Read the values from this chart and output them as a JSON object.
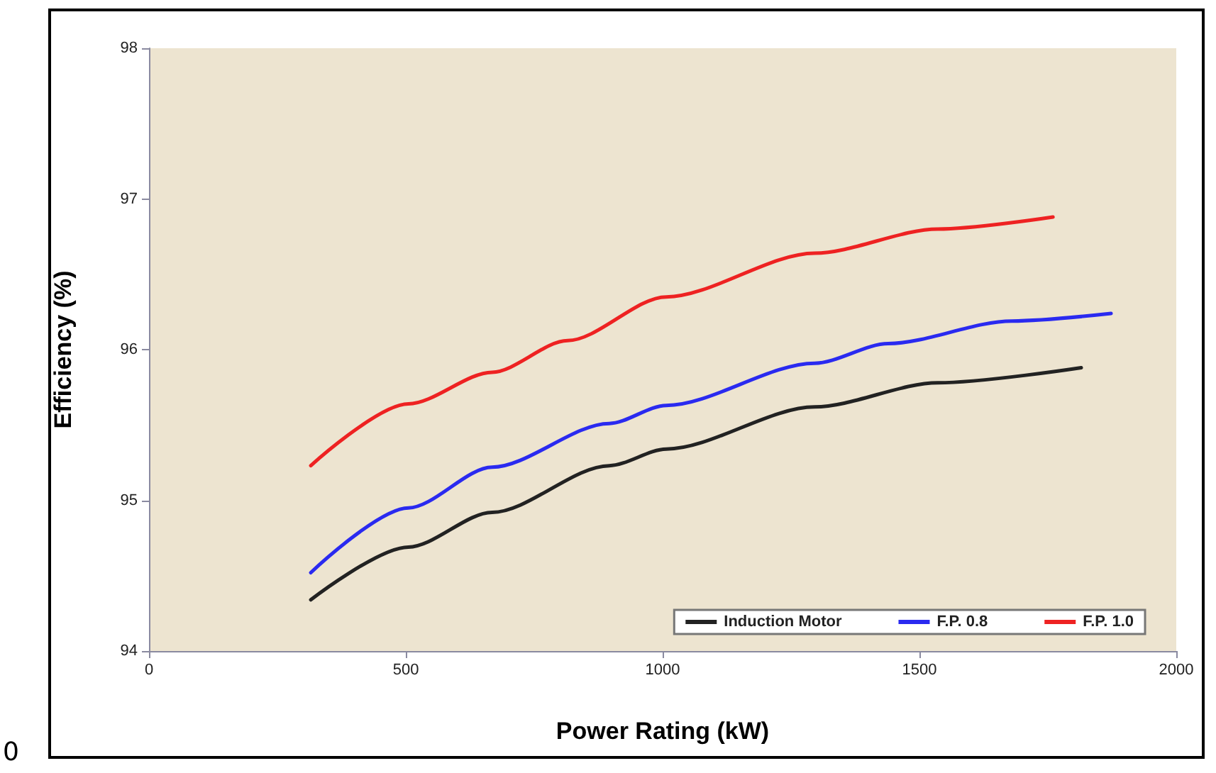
{
  "chart_data": {
    "type": "line",
    "xlabel": "Power Rating (kW)",
    "ylabel": "Efficiency (%)",
    "xlim": [
      0,
      2000
    ],
    "xticks": [
      0,
      500,
      1000,
      1500,
      2000
    ],
    "ylim": [
      94,
      98
    ],
    "yticks": [
      94,
      95,
      96,
      97,
      98
    ],
    "grid": false,
    "legend": "bottom right",
    "marker": "none",
    "line_style": "solid",
    "annotations": [
      "0"
    ],
    "series": [
      {
        "name": "Induction Motor",
        "color": "#222222",
        "x": [
          315,
          505,
          668,
          896,
          1007,
          1296,
          1536,
          1815
        ],
        "values": [
          94.34,
          94.69,
          94.92,
          95.23,
          95.34,
          95.62,
          95.78,
          95.88
        ]
      },
      {
        "name": "F.P. 0.8",
        "color": "#2a2af0",
        "x": [
          315,
          505,
          668,
          896,
          1007,
          1296,
          1439,
          1680,
          1873
        ],
        "values": [
          94.52,
          94.95,
          95.22,
          95.51,
          95.63,
          95.91,
          96.04,
          96.19,
          96.24
        ]
      },
      {
        "name": "F.P. 1.0",
        "color": "#ee2222",
        "x": [
          315,
          505,
          668,
          815,
          1007,
          1296,
          1536,
          1760
        ],
        "values": [
          95.23,
          95.64,
          95.85,
          96.06,
          96.35,
          96.64,
          96.8,
          96.88
        ]
      }
    ]
  }
}
